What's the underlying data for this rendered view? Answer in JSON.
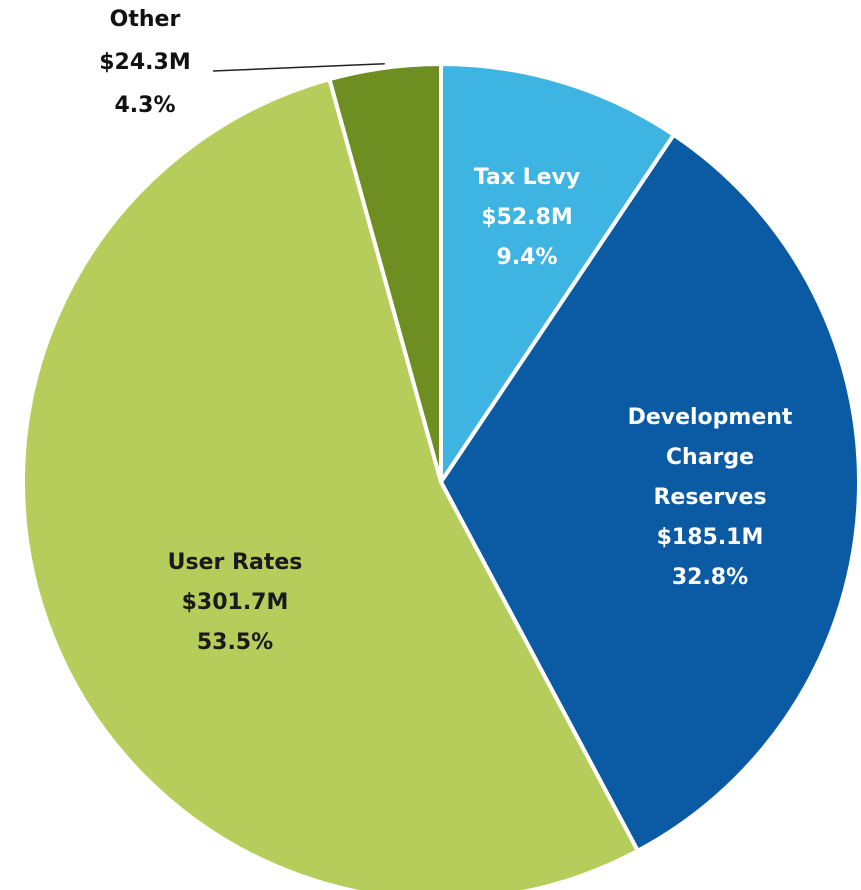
{
  "chart_data": {
    "type": "pie",
    "categories": [
      "Tax Levy",
      "Development Charge Reserves",
      "User Rates",
      "Other"
    ],
    "values": [
      9.4,
      32.8,
      53.5,
      4.3
    ],
    "value_labels": [
      "9.4%",
      "32.8%",
      "53.5%",
      "4.3%"
    ],
    "amount_labels": [
      "$52.8M",
      "$185.1M",
      "$301.7M",
      "$24.3M"
    ],
    "colors": [
      "#3db4e2",
      "#0b5aa4",
      "#b6cd5b",
      "#6e8e22"
    ]
  }
}
